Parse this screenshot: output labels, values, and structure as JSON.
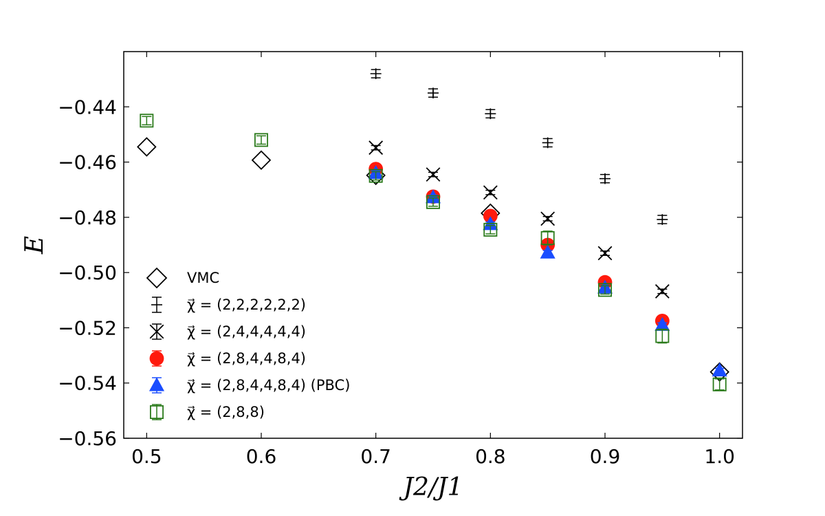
{
  "chart_data": {
    "type": "scatter",
    "title": "",
    "xlabel": "J2/J1",
    "ylabel": "E",
    "xlim": [
      0.48,
      1.02
    ],
    "ylim": [
      -0.56,
      -0.42
    ],
    "xticks": [
      0.5,
      0.6,
      0.7,
      0.8,
      0.9,
      1.0
    ],
    "xtick_labels": [
      "0.5",
      "0.6",
      "0.7",
      "0.8",
      "0.9",
      "1.0"
    ],
    "yticks": [
      -0.44,
      -0.46,
      -0.48,
      -0.5,
      -0.52,
      -0.54,
      -0.56
    ],
    "ytick_labels": [
      "−0.44",
      "−0.46",
      "−0.48",
      "−0.50",
      "−0.52",
      "−0.54",
      "−0.56"
    ],
    "grid": false,
    "legend_position": "lower-left",
    "series": [
      {
        "name": "VMC",
        "marker": "diamond",
        "color": "#000000",
        "x": [
          0.5,
          0.6,
          0.7,
          0.8,
          1.0
        ],
        "y": [
          -0.4545,
          -0.4593,
          -0.4648,
          -0.4785,
          -0.536
        ],
        "yerr": [
          0,
          0,
          0,
          0,
          0
        ]
      },
      {
        "name": "χ=(2,2,2,2,2,2)",
        "marker": "plus",
        "color": "#000000",
        "x": [
          0.7,
          0.75,
          0.8,
          0.85,
          0.9,
          0.95
        ],
        "y": [
          -0.428,
          -0.435,
          -0.4425,
          -0.453,
          -0.466,
          -0.4808
        ],
        "yerr": [
          0.0015,
          0.0015,
          0.0015,
          0.0015,
          0.0015,
          0.0015
        ]
      },
      {
        "name": "χ=(2,4,4,4,4,4)",
        "marker": "x",
        "color": "#000000",
        "x": [
          0.7,
          0.75,
          0.8,
          0.85,
          0.9,
          0.95
        ],
        "y": [
          -0.4548,
          -0.4645,
          -0.471,
          -0.4805,
          -0.493,
          -0.5068
        ],
        "yerr": [
          0.0008,
          0.0008,
          0.0008,
          0.0008,
          0.0008,
          0.0008
        ]
      },
      {
        "name": "χ=(2,8,4,4,8,4)",
        "marker": "circle",
        "color": "#ff1a0d",
        "x": [
          0.7,
          0.75,
          0.8,
          0.85,
          0.9,
          0.95
        ],
        "y": [
          -0.4625,
          -0.4725,
          -0.4795,
          -0.49,
          -0.5035,
          -0.5175
        ],
        "yerr": [
          0.0008,
          0.0008,
          0.0008,
          0.0008,
          0.0008,
          0.0008
        ]
      },
      {
        "name": "χ=(2,8,4,4,8,4) (PBC)",
        "marker": "triangle",
        "color": "#1a4dff",
        "x": [
          0.7,
          0.75,
          0.8,
          0.85,
          0.9,
          0.95,
          1.0
        ],
        "y": [
          -0.464,
          -0.4728,
          -0.4825,
          -0.4928,
          -0.5055,
          -0.519,
          -0.5355
        ],
        "yerr": [
          0.0008,
          0.0008,
          0.0008,
          0.0008,
          0.0008,
          0.0008,
          0.0008
        ]
      },
      {
        "name": "χ=(2,8,8)",
        "marker": "square-open",
        "color": "#2a7a1a",
        "x": [
          0.5,
          0.6,
          0.7,
          0.75,
          0.8,
          0.85,
          0.9,
          0.95,
          1.0
        ],
        "y": [
          -0.445,
          -0.452,
          -0.465,
          -0.4745,
          -0.4845,
          -0.4875,
          -0.5063,
          -0.523,
          -0.5405
        ],
        "yerr": [
          0.0015,
          0.0015,
          0.0015,
          0.0015,
          0.0015,
          0.0025,
          0.0015,
          0.0025,
          0.002
        ]
      }
    ],
    "legend": [
      {
        "label": "VMC",
        "marker": "diamond"
      },
      {
        "label": "χ⃗ = (2,2,2,2,2,2)",
        "marker": "plus"
      },
      {
        "label": "χ⃗ = (2,4,4,4,4,4)",
        "marker": "x"
      },
      {
        "label": "χ⃗ = (2,8,4,4,8,4)",
        "marker": "circle"
      },
      {
        "label": "χ⃗ = (2,8,4,4,8,4) (PBC)",
        "marker": "triangle"
      },
      {
        "label": "χ⃗ = (2,8,8)",
        "marker": "square-open"
      }
    ]
  }
}
